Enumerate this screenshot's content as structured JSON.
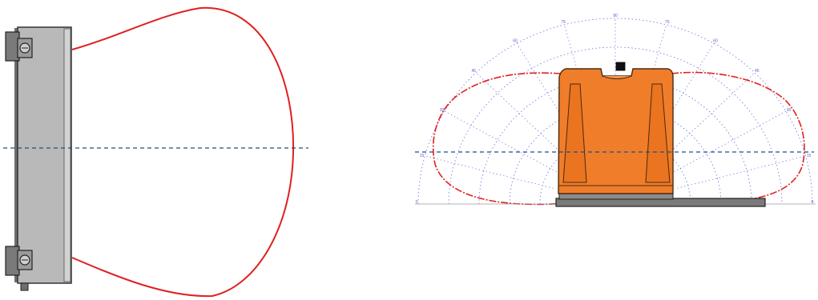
{
  "colors": {
    "background": "#ffffff",
    "pattern_curve": "#e0201f",
    "axis_line": "#1f4e8c",
    "polar_grid": "#6f6fe0",
    "enclosure_side": "#b9b9b9",
    "enclosure_dark": "#4a4a4a",
    "device_body": "#f07d2a",
    "device_outline": "#4a2a10",
    "mount_plate": "#7a7a7a"
  },
  "side_view": {
    "enclosure": {
      "kind": "wall-mounted enclosure, side view"
    },
    "beam": {
      "kind": "detection pattern outline"
    },
    "centerline": {
      "kind": "dashed horizontal reference line"
    }
  },
  "front_view": {
    "device": {
      "kind": "orange sensor housing, front view"
    },
    "polar_grid": {
      "angle_labels": [
        "0",
        "15",
        "30",
        "45",
        "60",
        "75",
        "90",
        "75",
        "60",
        "45",
        "30",
        "15",
        "0"
      ]
    },
    "centerline": {
      "kind": "dashed horizontal reference line"
    }
  }
}
